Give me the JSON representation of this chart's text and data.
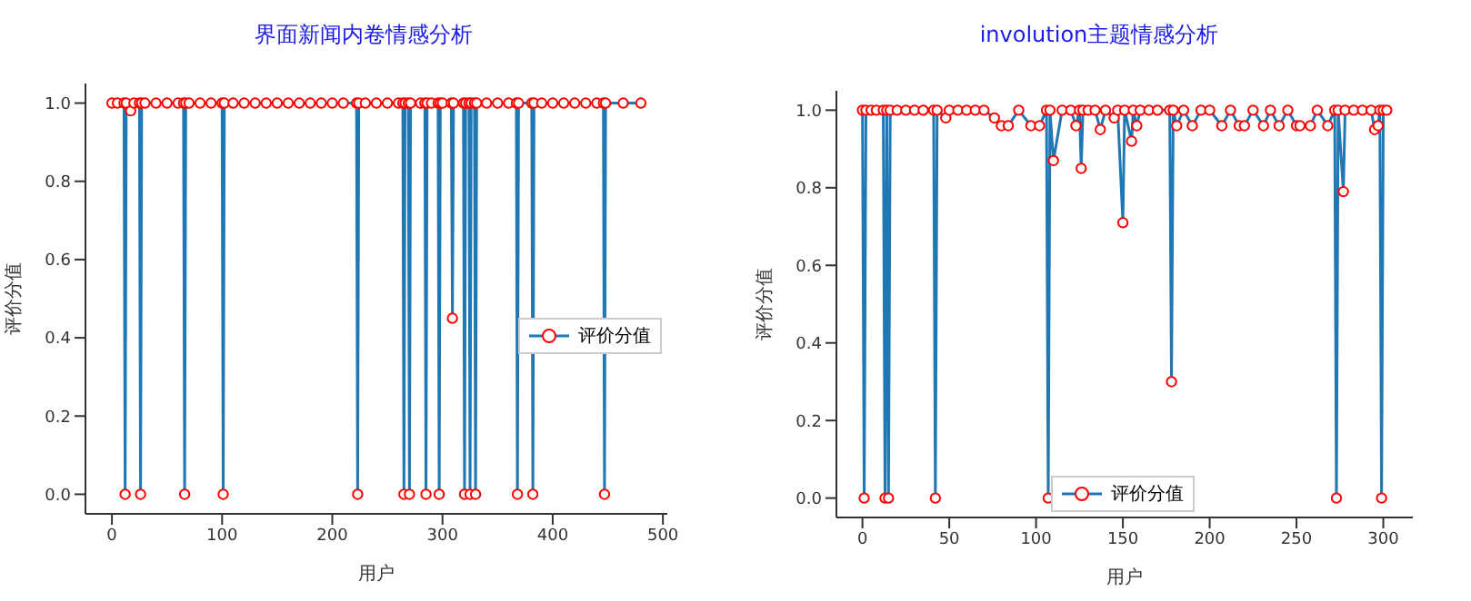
{
  "chart_data": [
    {
      "type": "line",
      "title": "界面新闻内卷情感分析",
      "xlabel": "用户",
      "ylabel": "评价分值",
      "xlim": [
        -24,
        504
      ],
      "xticks": [
        0,
        100,
        200,
        300,
        400,
        500
      ],
      "ylim": [
        -0.05,
        1.05
      ],
      "yticks": [
        {
          "value": 0,
          "label": "0.0"
        },
        {
          "value": 0.2,
          "label": "0.2"
        },
        {
          "value": 0.4,
          "label": "0.4"
        },
        {
          "value": 0.6,
          "label": "0.6"
        },
        {
          "value": 0.8,
          "label": "0.8"
        },
        {
          "value": 1,
          "label": "1.0"
        }
      ],
      "legend": "right",
      "marker": "circle",
      "line_style": "solid",
      "series": [
        {
          "name": "评价分值",
          "color": "#1f77b4",
          "x": [
            0,
            5,
            11,
            12,
            13,
            17,
            20,
            25,
            26,
            27,
            30,
            40,
            50,
            60,
            65,
            66,
            67,
            70,
            80,
            90,
            100,
            101,
            102,
            110,
            120,
            130,
            140,
            150,
            160,
            170,
            180,
            190,
            200,
            210,
            222,
            223,
            224,
            230,
            240,
            250,
            260,
            264,
            265,
            266,
            269,
            270,
            271,
            280,
            284,
            285,
            286,
            290,
            296,
            297,
            298,
            300,
            308,
            309,
            310,
            319,
            320,
            321,
            324,
            325,
            326,
            329,
            330,
            331,
            340,
            350,
            360,
            367,
            368,
            369,
            381,
            382,
            383,
            390,
            400,
            410,
            420,
            430,
            440,
            446,
            447,
            448,
            464,
            480
          ],
          "values": [
            1,
            1,
            1,
            0,
            1,
            0.98,
            1,
            1,
            0,
            1,
            1,
            1,
            1,
            1,
            1,
            0,
            1,
            1,
            1,
            1,
            1,
            0,
            1,
            1,
            1,
            1,
            1,
            1,
            1,
            1,
            1,
            1,
            1,
            1,
            1,
            0,
            1,
            1,
            1,
            1,
            1,
            1,
            0,
            1,
            1,
            0,
            1,
            1,
            1,
            0,
            1,
            1,
            1,
            0,
            1,
            1,
            1,
            0.45,
            1,
            1,
            0,
            1,
            1,
            0,
            1,
            1,
            0,
            1,
            1,
            1,
            1,
            1,
            0,
            1,
            1,
            0,
            1,
            1,
            1,
            1,
            1,
            1,
            1,
            1,
            0,
            1,
            1,
            1
          ]
        }
      ]
    },
    {
      "type": "line",
      "title": "involution主题情感分析",
      "xlabel": "用户",
      "ylabel": "评价分值",
      "xlim": [
        -15,
        317
      ],
      "xticks": [
        0,
        50,
        100,
        150,
        200,
        250,
        300
      ],
      "ylim": [
        -0.05,
        1.05
      ],
      "yticks": [
        {
          "value": 0,
          "label": "0.0"
        },
        {
          "value": 0.2,
          "label": "0.2"
        },
        {
          "value": 0.4,
          "label": "0.4"
        },
        {
          "value": 0.6,
          "label": "0.6"
        },
        {
          "value": 0.8,
          "label": "0.8"
        },
        {
          "value": 1,
          "label": "1.0"
        }
      ],
      "legend": "bottom",
      "marker": "circle",
      "line_style": "solid",
      "series": [
        {
          "name": "评价分值",
          "color": "#1f77b4",
          "x": [
            0,
            1,
            2,
            5,
            8,
            12,
            13,
            14,
            15,
            16,
            20,
            25,
            30,
            35,
            41,
            42,
            43,
            48,
            50,
            55,
            60,
            65,
            70,
            76,
            80,
            84,
            90,
            97,
            102,
            106,
            107,
            108,
            110,
            115,
            120,
            123,
            125,
            126,
            127,
            130,
            134,
            137,
            140,
            145,
            147,
            150,
            151,
            155,
            156,
            158,
            160,
            165,
            170,
            177,
            178,
            179,
            181,
            185,
            190,
            195,
            200,
            207,
            212,
            217,
            220,
            225,
            231,
            235,
            240,
            245,
            250,
            252,
            258,
            262,
            268,
            272,
            273,
            274,
            277,
            278,
            283,
            288,
            293,
            295,
            297,
            298,
            299,
            300,
            302
          ],
          "values": [
            1,
            0,
            1,
            1,
            1,
            1,
            0,
            1,
            0,
            1,
            1,
            1,
            1,
            1,
            1,
            0,
            1,
            0.98,
            1,
            1,
            1,
            1,
            1,
            0.98,
            0.96,
            0.96,
            1,
            0.96,
            0.96,
            1,
            0,
            1,
            0.87,
            1,
            1,
            0.96,
            1,
            0.85,
            1,
            1,
            1,
            0.95,
            1,
            0.98,
            1,
            0.71,
            1,
            0.92,
            1,
            0.96,
            1,
            1,
            1,
            1,
            0.3,
            1,
            0.96,
            1,
            0.96,
            1,
            1,
            0.96,
            1,
            0.96,
            0.96,
            1,
            0.96,
            1,
            0.96,
            1,
            0.96,
            0.96,
            0.96,
            1,
            0.96,
            1,
            0,
            1,
            0.79,
            1,
            1,
            1,
            1,
            0.95,
            0.96,
            1,
            0,
            1,
            1
          ]
        }
      ]
    }
  ]
}
